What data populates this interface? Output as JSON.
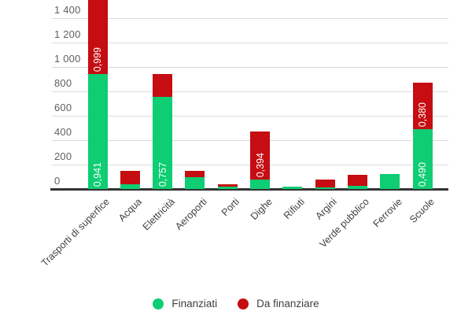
{
  "chart_data": {
    "type": "bar",
    "stacked": true,
    "categories": [
      "Trasporti di superfice",
      "Acqua",
      "Elettricità",
      "Aeroporti",
      "Porti",
      "Dighe",
      "Rifiuti",
      "Argini",
      "Verde pubblico",
      "Ferrovie",
      "Scuole"
    ],
    "series": [
      {
        "name": "Finanziati",
        "color": "#0ecd72",
        "values": [
          941,
          40,
          757,
          100,
          20,
          75,
          20,
          15,
          25,
          125,
          490
        ]
      },
      {
        "name": "Da finanziare",
        "color": "#c50d12",
        "values": [
          999,
          110,
          185,
          50,
          20,
          394,
          0,
          60,
          90,
          0,
          380
        ]
      }
    ],
    "bar_value_labels": [
      {
        "category_index": 0,
        "series_index": 0,
        "text": "0,941"
      },
      {
        "category_index": 0,
        "series_index": 1,
        "text": "0,999"
      },
      {
        "category_index": 2,
        "series_index": 0,
        "text": "0,757"
      },
      {
        "category_index": 5,
        "series_index": 1,
        "text": "0,394"
      },
      {
        "category_index": 10,
        "series_index": 0,
        "text": "0,490"
      },
      {
        "category_index": 10,
        "series_index": 1,
        "text": "0,380"
      }
    ],
    "y_axis": {
      "tick_labels": [
        "0",
        "200",
        "400",
        "600",
        "800",
        "1 000",
        "1 200",
        "1 400"
      ],
      "tick_values": [
        0,
        200,
        400,
        600,
        800,
        1000,
        1200,
        1400
      ],
      "visible_max": 1548,
      "clipped_top": true
    },
    "x_axis": {
      "label_rotation_deg": -45
    },
    "grid": true,
    "legend": {
      "position": "bottom",
      "items": [
        {
          "label": "Finanziati",
          "color": "#0ecd72"
        },
        {
          "label": "Da finanziare",
          "color": "#c50d12"
        }
      ]
    }
  }
}
